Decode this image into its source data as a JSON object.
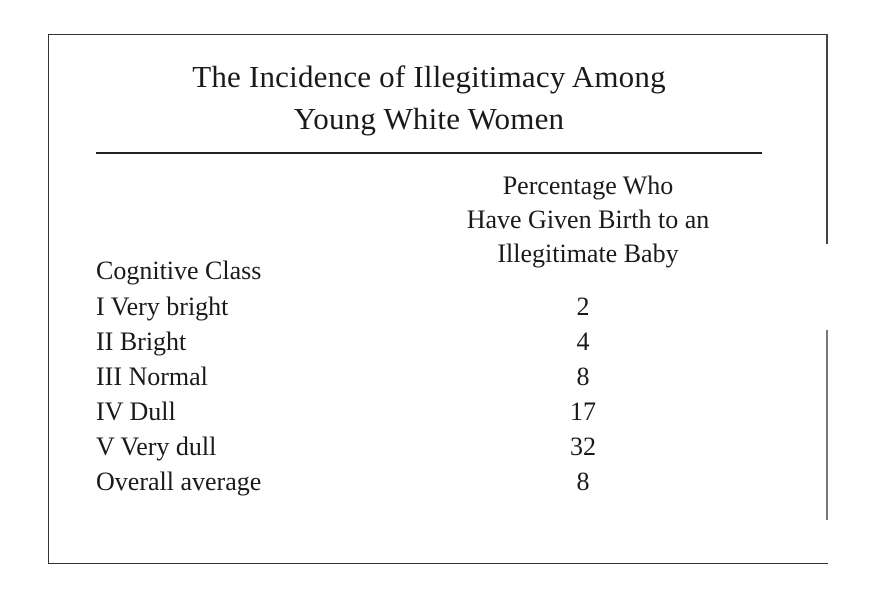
{
  "title": {
    "line1": "The Incidence of Illegitimacy Among",
    "line2": "Young White Women"
  },
  "header": {
    "class_label": "Cognitive Class",
    "pct_line1": "Percentage Who",
    "pct_line2": "Have Given Birth to an",
    "pct_line3": "Illegitimate Baby"
  },
  "rows": [
    {
      "cognitive_class": "I Very bright",
      "percentage": "2"
    },
    {
      "cognitive_class": "II Bright",
      "percentage": "4"
    },
    {
      "cognitive_class": "III Normal",
      "percentage": "8"
    },
    {
      "cognitive_class": "IV Dull",
      "percentage": "17"
    },
    {
      "cognitive_class": "V Very dull",
      "percentage": "32"
    },
    {
      "cognitive_class": "Overall average",
      "percentage": "8"
    }
  ]
}
